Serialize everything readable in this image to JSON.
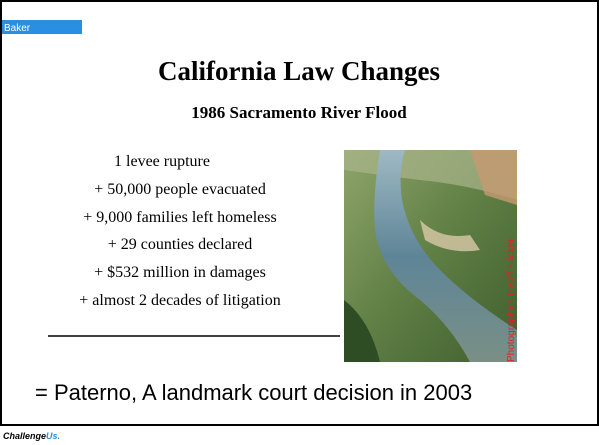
{
  "header": {
    "label": "Baker"
  },
  "title": "California Law Changes",
  "subtitle": "1986 Sacramento River Flood",
  "items": [
    "1 levee rupture",
    "+ 50,000 people evacuated",
    "+ 9,000 families left homeless",
    "+ 29 counties declared",
    "+ $532 million in damages",
    "+ almost 2 decades of litigation"
  ],
  "photo_credit": "Photographer: Geoff Fricker",
  "conclusion": "= Paterno, A landmark court decision in 2003",
  "footer": {
    "logo": [
      "Challenge",
      "Us."
    ]
  }
}
